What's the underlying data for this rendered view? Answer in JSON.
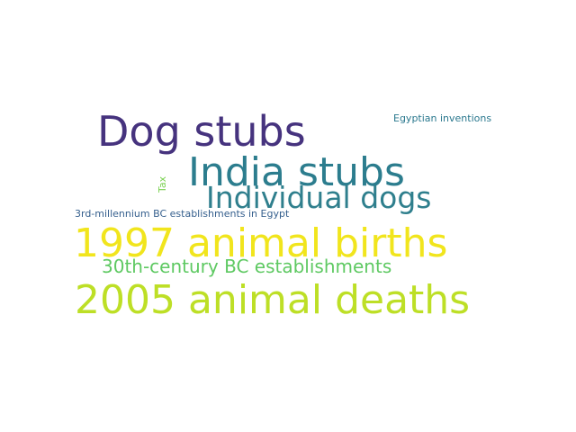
{
  "words": [
    {
      "text": "Dog stubs",
      "color": "#46337e"
    },
    {
      "text": "India stubs",
      "color": "#2c7d8e"
    },
    {
      "text": "Individual dogs",
      "color": "#2f7f8d"
    },
    {
      "text": "1997 animal births",
      "color": "#f1e51d"
    },
    {
      "text": "30th-century BC establishments",
      "color": "#5ec962"
    },
    {
      "text": "2005 animal deaths",
      "color": "#bddf26"
    },
    {
      "text": "Egyptian inventions",
      "color": "#2a788e"
    },
    {
      "text": "Tax",
      "color": "#7ad151"
    },
    {
      "text": "3rd-millennium BC establishments in Egypt",
      "color": "#355f8d"
    }
  ]
}
